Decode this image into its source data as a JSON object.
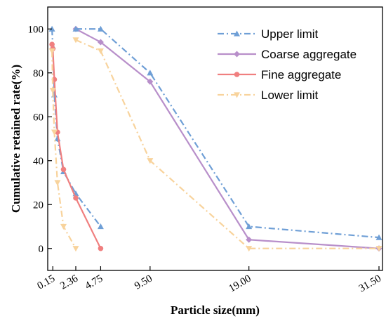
{
  "chart_data": {
    "type": "line",
    "xlabel": "Particle size(mm)",
    "ylabel": "Cumulative retained rate(%)",
    "xlim": [
      0,
      31.5
    ],
    "ylim": [
      -10,
      110
    ],
    "x_ticks": [
      0.15,
      2.36,
      4.75,
      9.5,
      19.0,
      31.5
    ],
    "x_tick_labels": [
      "0.15",
      "2.36",
      "4.75",
      "9.50",
      "19.00",
      "31.50"
    ],
    "y_ticks": [
      0,
      20,
      40,
      60,
      80,
      100
    ],
    "y_tick_labels": [
      "0",
      "20",
      "40",
      "60",
      "80",
      "100"
    ],
    "legend_position": "top-right",
    "series": [
      {
        "name": "Upper limit",
        "color": "#6f9fd6",
        "line_style": "dash-dot",
        "marker": "triangle-up",
        "x": [
          0.075,
          0.15,
          0.3,
          0.6,
          1.18,
          2.36,
          4.75
        ],
        "y": [
          100,
          92,
          70,
          50,
          35,
          25,
          10
        ]
      },
      {
        "name": "Coarse aggregate",
        "color": "#b88fca",
        "line_style": "solid",
        "marker": "diamond",
        "x": [
          2.36,
          4.75,
          9.5,
          19.0,
          31.5
        ],
        "y": [
          100,
          94,
          76,
          4,
          0
        ]
      },
      {
        "name": "Fine aggregate",
        "color": "#f07f7f",
        "line_style": "solid",
        "marker": "circle",
        "x": [
          0.075,
          0.15,
          0.3,
          0.6,
          1.18,
          2.36,
          4.75
        ],
        "y": [
          93,
          91,
          77,
          53,
          36,
          23,
          0
        ]
      },
      {
        "name": "Lower limit",
        "color": "#f8d39c",
        "line_style": "dash-dot",
        "marker": "triangle-down",
        "x": [
          0.075,
          0.15,
          0.3,
          0.6,
          1.18,
          2.36
        ],
        "y": [
          90,
          72,
          53,
          30,
          10,
          0
        ]
      },
      {
        "name": "Lower limit",
        "color": "#f8d39c",
        "line_style": "dash-dot",
        "marker": "triangle-down",
        "x": [
          2.36,
          4.75,
          9.5,
          19.0,
          31.5
        ],
        "y": [
          95,
          90,
          40,
          0,
          0
        ]
      },
      {
        "name": "Upper limit",
        "color": "#6f9fd6",
        "line_style": "dash-dot",
        "marker": "triangle-up",
        "x": [
          2.36,
          4.75,
          9.5,
          19.0,
          31.5
        ],
        "y": [
          100,
          100,
          80,
          10,
          5
        ]
      }
    ],
    "legend": [
      {
        "label": "Upper limit",
        "series_index": 0
      },
      {
        "label": "Coarse aggregate",
        "series_index": 1
      },
      {
        "label": "Fine aggregate",
        "series_index": 2
      },
      {
        "label": "Lower limit",
        "series_index": 3
      }
    ]
  }
}
